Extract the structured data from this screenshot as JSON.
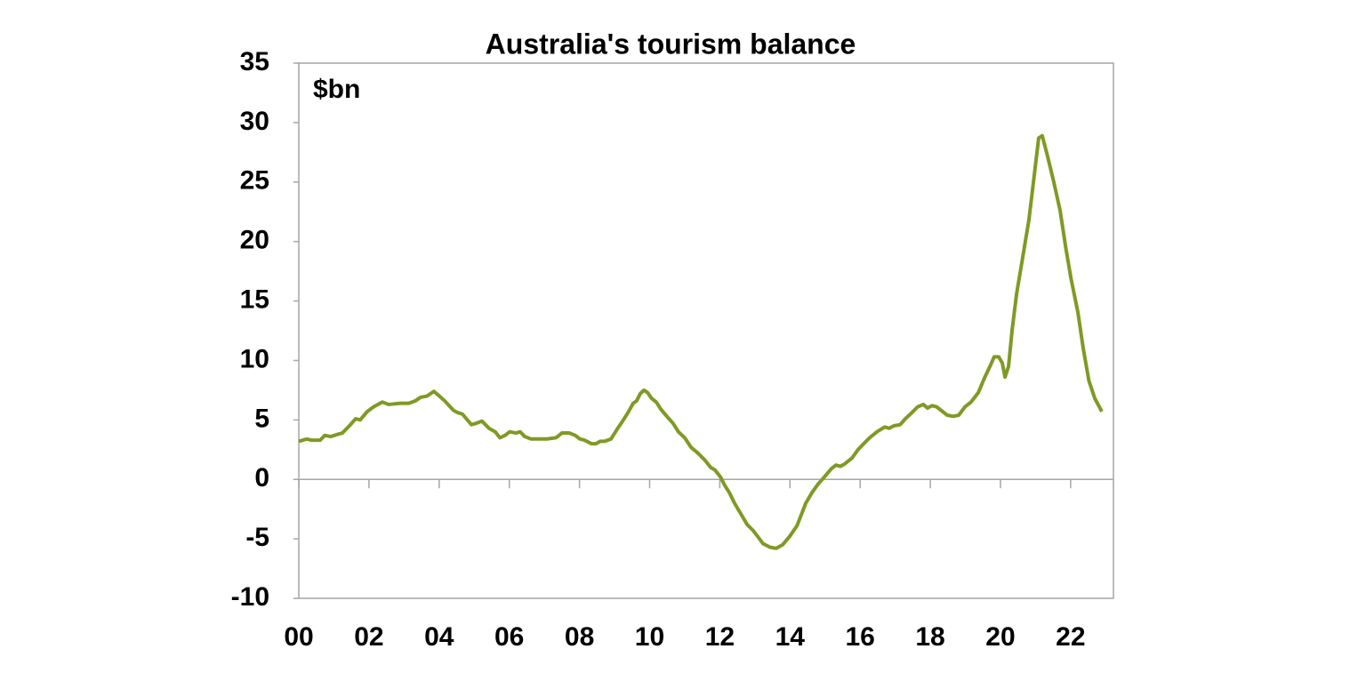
{
  "chart_data": {
    "type": "line",
    "title": "Australia's tourism balance",
    "annotation": "$bn",
    "x": [
      2000.0,
      2000.23,
      2000.35,
      2000.61,
      2000.74,
      2000.91,
      2001.12,
      2001.24,
      2001.44,
      2001.62,
      2001.75,
      2001.95,
      2002.13,
      2002.38,
      2002.56,
      2002.89,
      2003.14,
      2003.32,
      2003.47,
      2003.65,
      2003.85,
      2004.01,
      2004.16,
      2004.41,
      2004.54,
      2004.66,
      2004.92,
      2005.04,
      2005.22,
      2005.42,
      2005.6,
      2005.73,
      2005.88,
      2006.01,
      2006.19,
      2006.31,
      2006.44,
      2006.62,
      2006.82,
      2007.07,
      2007.33,
      2007.5,
      2007.71,
      2007.88,
      2008.01,
      2008.14,
      2008.34,
      2008.47,
      2008.59,
      2008.72,
      2008.9,
      2009.07,
      2009.23,
      2009.38,
      2009.53,
      2009.63,
      2009.73,
      2009.84,
      2009.94,
      2010.06,
      2010.19,
      2010.32,
      2010.49,
      2010.67,
      2010.82,
      2011.0,
      2011.18,
      2011.38,
      2011.58,
      2011.74,
      2011.86,
      2012.02,
      2012.14,
      2012.27,
      2012.42,
      2012.6,
      2012.78,
      2012.95,
      2013.08,
      2013.23,
      2013.43,
      2013.61,
      2013.79,
      2013.99,
      2014.2,
      2014.32,
      2014.45,
      2014.63,
      2014.8,
      2014.98,
      2015.18,
      2015.31,
      2015.44,
      2015.56,
      2015.77,
      2015.94,
      2016.07,
      2016.27,
      2016.48,
      2016.7,
      2016.83,
      2016.96,
      2017.14,
      2017.29,
      2017.47,
      2017.64,
      2017.8,
      2017.92,
      2018.05,
      2018.18,
      2018.31,
      2018.48,
      2018.66,
      2018.81,
      2018.99,
      2019.16,
      2019.37,
      2019.54,
      2019.7,
      2019.82,
      2019.95,
      2020.05,
      2020.13,
      2020.23,
      2020.33,
      2020.46,
      2020.63,
      2020.81,
      2020.96,
      2021.09,
      2021.19,
      2021.34,
      2021.52,
      2021.7,
      2021.86,
      2022.01,
      2022.21,
      2022.36,
      2022.52,
      2022.69,
      2022.89
    ],
    "series": [
      {
        "color": "#7f9a24",
        "values": [
          3.2,
          3.4,
          3.3,
          3.3,
          3.7,
          3.6,
          3.8,
          3.9,
          4.5,
          5.1,
          5.0,
          5.7,
          6.1,
          6.5,
          6.3,
          6.4,
          6.4,
          6.6,
          6.9,
          7.0,
          7.4,
          7.0,
          6.6,
          5.8,
          5.6,
          5.5,
          4.6,
          4.7,
          4.9,
          4.3,
          4.0,
          3.5,
          3.7,
          4.0,
          3.9,
          4.0,
          3.6,
          3.4,
          3.4,
          3.4,
          3.5,
          3.9,
          3.9,
          3.7,
          3.4,
          3.3,
          3.0,
          3.0,
          3.2,
          3.2,
          3.4,
          4.2,
          4.9,
          5.6,
          6.4,
          6.6,
          7.2,
          7.5,
          7.3,
          6.8,
          6.5,
          5.9,
          5.3,
          4.7,
          4.0,
          3.5,
          2.7,
          2.2,
          1.6,
          1.0,
          0.8,
          0.2,
          -0.5,
          -1.1,
          -2.0,
          -2.9,
          -3.8,
          -4.3,
          -4.8,
          -5.4,
          -5.7,
          -5.8,
          -5.5,
          -4.8,
          -3.9,
          -3.0,
          -2.0,
          -1.1,
          -0.4,
          0.2,
          0.9,
          1.2,
          1.1,
          1.3,
          1.8,
          2.5,
          2.9,
          3.5,
          4.0,
          4.4,
          4.3,
          4.5,
          4.6,
          5.1,
          5.6,
          6.1,
          6.3,
          6.0,
          6.2,
          6.1,
          5.8,
          5.4,
          5.3,
          5.4,
          6.1,
          6.5,
          7.3,
          8.5,
          9.5,
          10.3,
          10.3,
          9.8,
          8.6,
          9.5,
          12.5,
          15.6,
          18.6,
          21.8,
          25.5,
          28.7,
          28.9,
          27.2,
          25.0,
          22.6,
          19.5,
          16.9,
          14.0,
          11.0,
          8.3,
          6.8,
          5.7
        ]
      }
    ],
    "xlim": [
      2000,
      2023.22
    ],
    "xticks": [
      {
        "value": 2000,
        "label": "00"
      },
      {
        "value": 2002,
        "label": "02"
      },
      {
        "value": 2004,
        "label": "04"
      },
      {
        "value": 2006,
        "label": "06"
      },
      {
        "value": 2008,
        "label": "08"
      },
      {
        "value": 2010,
        "label": "10"
      },
      {
        "value": 2012,
        "label": "12"
      },
      {
        "value": 2014,
        "label": "14"
      },
      {
        "value": 2016,
        "label": "16"
      },
      {
        "value": 2018,
        "label": "18"
      },
      {
        "value": 2020,
        "label": "20"
      },
      {
        "value": 2022,
        "label": "22"
      }
    ],
    "ylim": [
      -10,
      35
    ],
    "yticks": [
      35,
      30,
      25,
      20,
      15,
      10,
      5,
      0,
      -5,
      -10
    ]
  }
}
